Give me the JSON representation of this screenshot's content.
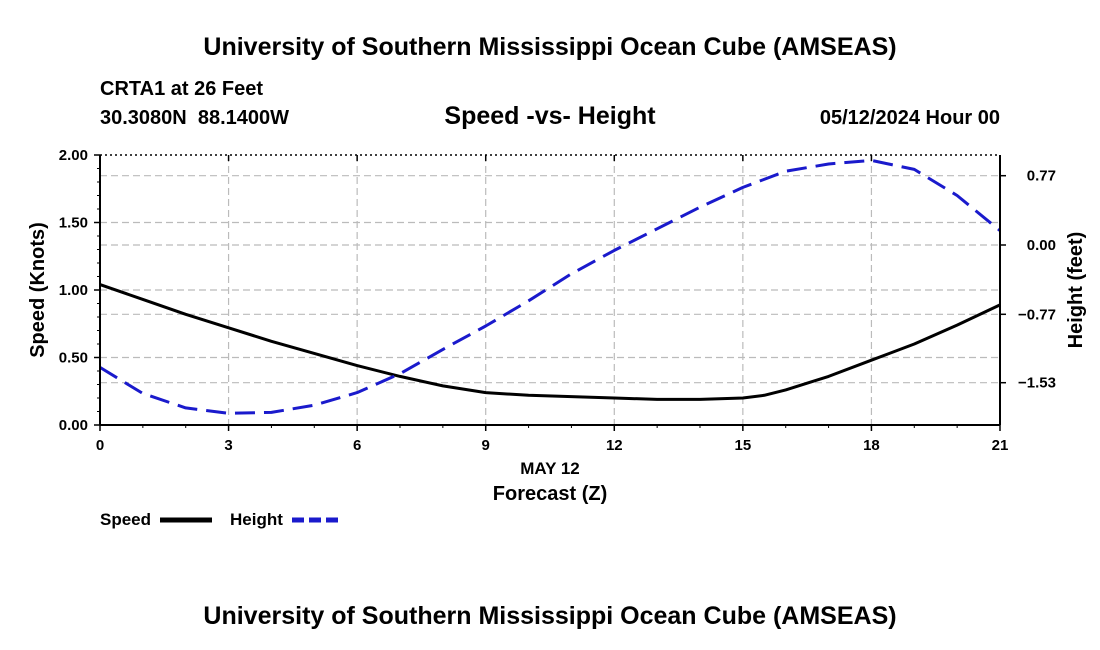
{
  "header": {
    "title": "University of Southern Mississippi Ocean Cube (AMSEAS)",
    "station": "CRTA1 at 26 Feet",
    "coords": "30.3080N  88.1400W",
    "subtitle": "Speed -vs- Height",
    "datetime": "05/12/2024 Hour 00"
  },
  "footer": {
    "title": "University of Southern Mississippi Ocean Cube (AMSEAS)"
  },
  "legend": {
    "speed_label": "Speed",
    "height_label": "Height"
  },
  "colors": {
    "speed": "#000000",
    "height": "#1a1acc",
    "grid": "#bbbbbb"
  },
  "chart_data": {
    "type": "line",
    "title": "Speed -vs- Height",
    "xlabel": "Forecast (Z)",
    "xlabel_date": "MAY 12",
    "ylabel": "Speed (Knots)",
    "y2label": "Height (feet)",
    "xlim": [
      0,
      21
    ],
    "ylim": [
      0,
      2
    ],
    "y2lim": [
      -2.0,
      1.0
    ],
    "x_ticks": [
      0,
      3,
      6,
      9,
      12,
      15,
      18,
      21
    ],
    "x_tick_labels": [
      "0",
      "3",
      "6",
      "9",
      "12",
      "15",
      "18",
      "21"
    ],
    "y_ticks": [
      0,
      0.5,
      1,
      1.5,
      2
    ],
    "y_tick_labels": [
      "0.00",
      "0.50",
      "1.00",
      "1.50",
      "2.00"
    ],
    "y2_ticks": [
      -1.53,
      -0.77,
      0.0,
      0.77
    ],
    "y2_tick_labels": [
      "−1.53",
      "−0.77",
      "0.00",
      "0.77"
    ],
    "grid": true,
    "series": [
      {
        "name": "Speed",
        "axis": "left",
        "style": "solid",
        "x": [
          0,
          1,
          2,
          3,
          4,
          5,
          6,
          7,
          8,
          9,
          10,
          11,
          12,
          13,
          14,
          15,
          15.5,
          16,
          17,
          18,
          19,
          20,
          21
        ],
        "values": [
          1.04,
          0.93,
          0.82,
          0.72,
          0.62,
          0.53,
          0.44,
          0.36,
          0.29,
          0.24,
          0.22,
          0.21,
          0.2,
          0.19,
          0.19,
          0.2,
          0.22,
          0.26,
          0.36,
          0.48,
          0.6,
          0.74,
          0.89
        ]
      },
      {
        "name": "Height",
        "axis": "right",
        "style": "dashed",
        "x": [
          0,
          1,
          2,
          3,
          4,
          5,
          6,
          7,
          8,
          9,
          10,
          11,
          12,
          13,
          14,
          15,
          16,
          17,
          18,
          19,
          20,
          21
        ],
        "values": [
          -1.36,
          -1.65,
          -1.81,
          -1.87,
          -1.86,
          -1.78,
          -1.64,
          -1.43,
          -1.16,
          -0.9,
          -0.62,
          -0.32,
          -0.06,
          0.18,
          0.42,
          0.64,
          0.82,
          0.9,
          0.94,
          0.84,
          0.55,
          0.16
        ]
      }
    ]
  }
}
